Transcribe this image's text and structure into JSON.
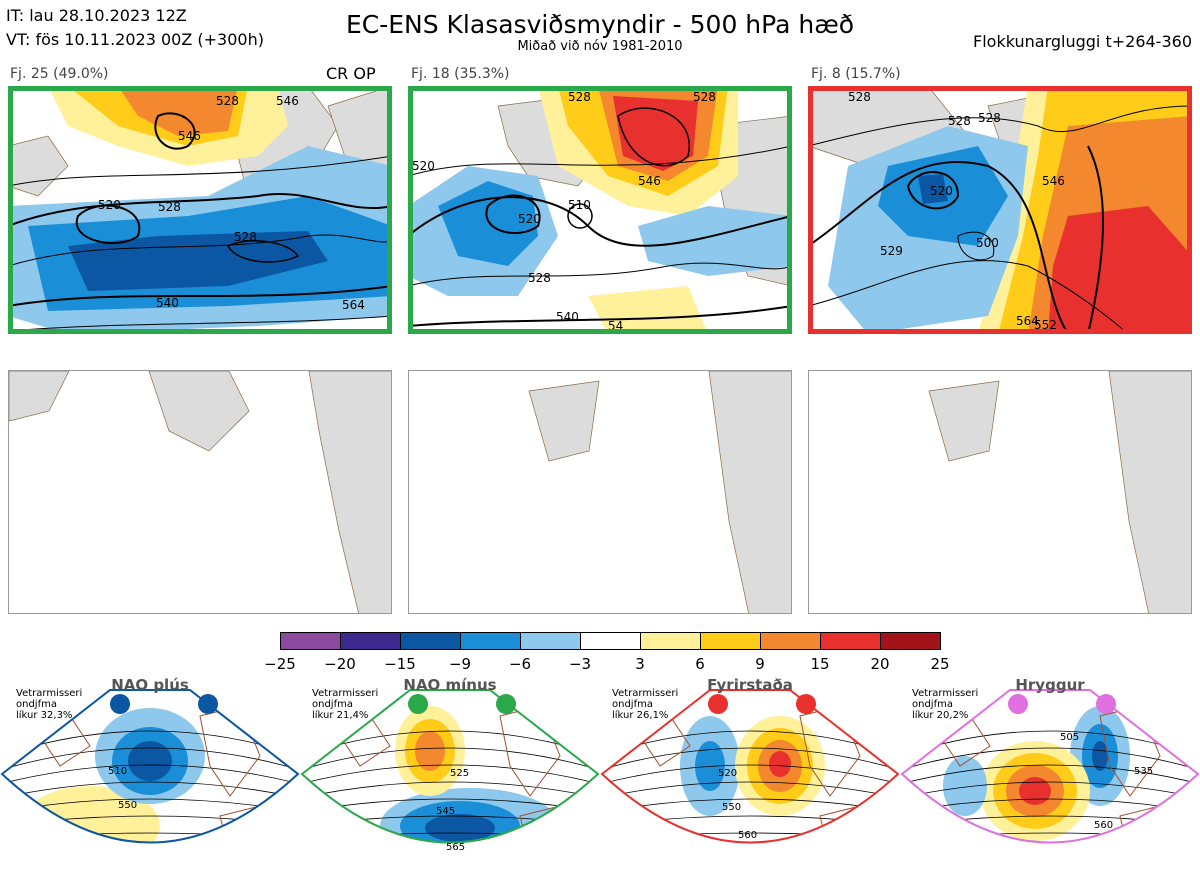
{
  "header": {
    "it_line": "IT: lau 28.10.2023 12Z",
    "vt_line": "VT: fös 10.11.2023 00Z  (+300h)",
    "title": "EC-ENS Klasasviðsmyndir - 500 hPa hæð",
    "subtitle": "Miðað við nóv 1981-2010",
    "window": "Flokkunargluggi t+264-360"
  },
  "clusters": [
    {
      "label": "Fj. 25 (49.0%)",
      "tag": "CR OP",
      "border_color": "#2aa84a",
      "contours": [
        "520",
        "528",
        "528",
        "546",
        "546",
        "540",
        "564",
        "528"
      ]
    },
    {
      "label": "Fj. 18 (35.3%)",
      "tag": "",
      "border_color": "#2aa84a",
      "contours": [
        "520",
        "520",
        "510",
        "528",
        "540",
        "528",
        "546",
        "54",
        "528"
      ]
    },
    {
      "label": "Fj. 8 (15.7%)",
      "tag": "",
      "border_color": "#e8312e",
      "contours": [
        "528",
        "528",
        "520",
        "500",
        "529",
        "546",
        "564",
        "552",
        "528"
      ]
    }
  ],
  "colorbar": {
    "ticks": [
      "−25",
      "−20",
      "−15",
      "−9",
      "−6",
      "−3",
      "3",
      "6",
      "9",
      "15",
      "20",
      "25"
    ],
    "colors": [
      "#8b4aa0",
      "#3d2a8f",
      "#0b57a4",
      "#1a8fd8",
      "#8ec8ec",
      "#ffffff",
      "#fff19a",
      "#ffcc1a",
      "#f3882e",
      "#e8312e",
      "#a3131a"
    ]
  },
  "regimes": [
    {
      "name": "NAO plús",
      "note": "Vetrarmisseri\nondjfma\nlíkur 32,3%",
      "color": "#0b57a4",
      "contours": [
        "510",
        "550"
      ]
    },
    {
      "name": "NAO mínus",
      "note": "Vetrarmisseri\nondjfma\nlíkur 21,4%",
      "color": "#2aa84a",
      "contours": [
        "525",
        "545",
        "565"
      ]
    },
    {
      "name": "Fyrirstaða",
      "note": "Vetrarmisseri\nondjfma\nlíkur 26,1%",
      "color": "#e8312e",
      "contours": [
        "520",
        "550",
        "560"
      ]
    },
    {
      "name": "Hryggur",
      "note": "Vetrarmisseri\nondjfma\nlíkur 20,2%",
      "color": "#e070e0",
      "contours": [
        "505",
        "535",
        "560"
      ]
    }
  ],
  "chart_data": {
    "type": "heatmap",
    "title": "EC-ENS Klasasviðsmyndir - 500 hPa hæð",
    "subtitle": "Miðað við nóv 1981-2010",
    "colorbar_bounds": [
      -25,
      -20,
      -15,
      -9,
      -6,
      -3,
      3,
      6,
      9,
      15,
      20,
      25
    ],
    "cluster_probabilities": [
      {
        "cluster": "Fj. 25",
        "percent": 49.0
      },
      {
        "cluster": "Fj. 18",
        "percent": 35.3
      },
      {
        "cluster": "Fj. 8",
        "percent": 15.7
      }
    ],
    "regime_probabilities": [
      {
        "regime": "NAO plús",
        "percent": 32.3
      },
      {
        "regime": "NAO mínus",
        "percent": 21.4
      },
      {
        "regime": "Fyrirstaða",
        "percent": 26.1
      },
      {
        "regime": "Hryggur",
        "percent": 20.2
      }
    ]
  }
}
